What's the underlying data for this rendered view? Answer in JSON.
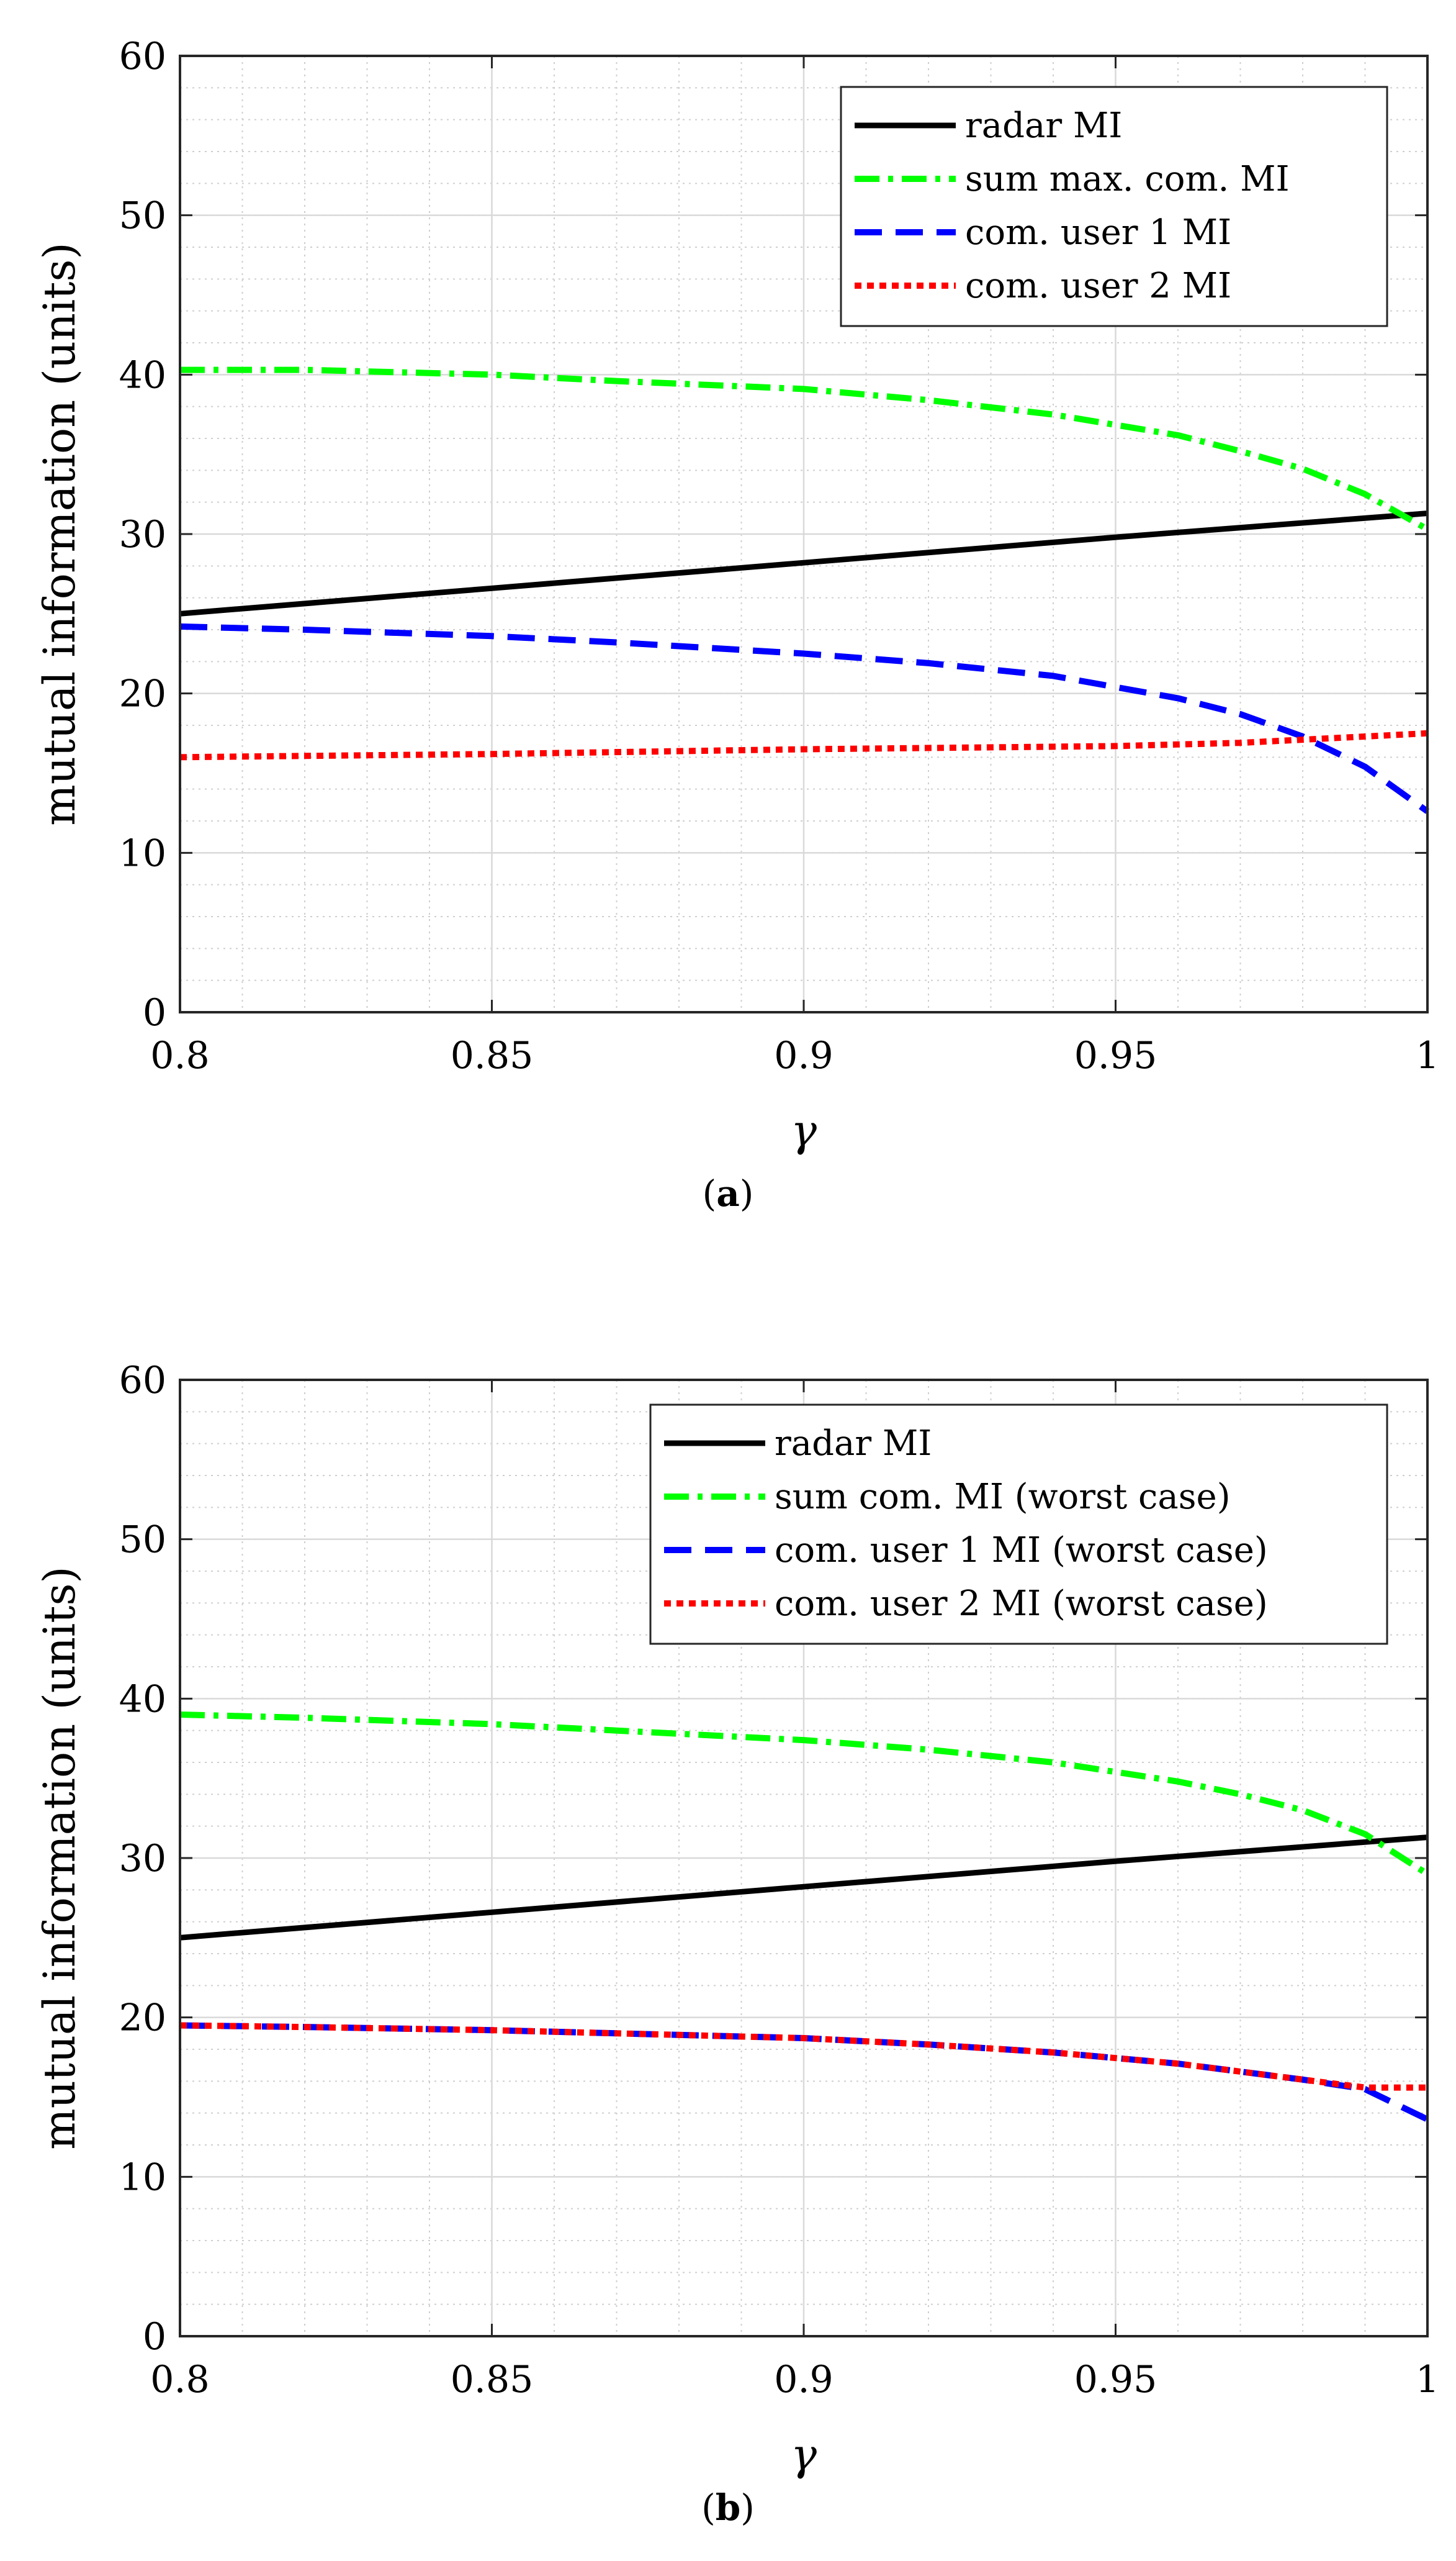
{
  "chart_data": [
    {
      "type": "line",
      "caption_letter": "a",
      "caption_open": "(",
      "caption_close": ")",
      "xlabel": "γ",
      "ylabel": "mutual information (units)",
      "xlim": [
        0.8,
        1.0
      ],
      "ylim": [
        0,
        60
      ],
      "xticks": [
        0.8,
        0.85,
        0.9,
        0.95,
        1.0
      ],
      "xtick_labels": [
        "0.8",
        "0.85",
        "0.9",
        "0.95",
        "1"
      ],
      "yticks": [
        0,
        10,
        20,
        30,
        40,
        50,
        60
      ],
      "ytick_labels": [
        "0",
        "10",
        "20",
        "30",
        "40",
        "50",
        "60"
      ],
      "grid": true,
      "minor_grid": true,
      "legend_position": "top-right",
      "series": [
        {
          "name": "radar MI",
          "color": "#000000",
          "style": "solid",
          "x": [
            0.8,
            0.85,
            0.9,
            0.95,
            1.0
          ],
          "y": [
            25.0,
            26.6,
            28.2,
            29.8,
            31.3
          ]
        },
        {
          "name": "sum max. com. MI",
          "color": "#00ff00",
          "style": "dashdot",
          "x": [
            0.8,
            0.82,
            0.85,
            0.87,
            0.9,
            0.92,
            0.94,
            0.96,
            0.97,
            0.98,
            0.99,
            1.0
          ],
          "y": [
            40.3,
            40.3,
            40.0,
            39.6,
            39.1,
            38.4,
            37.5,
            36.2,
            35.2,
            34.1,
            32.5,
            30.3
          ]
        },
        {
          "name": "com. user 1 MI",
          "color": "#0000ff",
          "style": "dashed",
          "x": [
            0.8,
            0.82,
            0.85,
            0.87,
            0.9,
            0.92,
            0.94,
            0.96,
            0.97,
            0.98,
            0.99,
            1.0
          ],
          "y": [
            24.2,
            24.0,
            23.6,
            23.2,
            22.5,
            21.9,
            21.1,
            19.7,
            18.7,
            17.3,
            15.4,
            12.6
          ]
        },
        {
          "name": "com. user 2 MI",
          "color": "#ff0000",
          "style": "dotted",
          "x": [
            0.8,
            0.85,
            0.9,
            0.95,
            0.96,
            0.97,
            0.98,
            0.99,
            1.0
          ],
          "y": [
            16.0,
            16.2,
            16.5,
            16.7,
            16.8,
            16.9,
            17.1,
            17.3,
            17.5
          ]
        }
      ]
    },
    {
      "type": "line",
      "caption_letter": "b",
      "caption_open": "(",
      "caption_close": ")",
      "xlabel": "γ",
      "ylabel": "mutual information (units)",
      "xlim": [
        0.8,
        1.0
      ],
      "ylim": [
        0,
        60
      ],
      "xticks": [
        0.8,
        0.85,
        0.9,
        0.95,
        1.0
      ],
      "xtick_labels": [
        "0.8",
        "0.85",
        "0.9",
        "0.95",
        "1"
      ],
      "yticks": [
        0,
        10,
        20,
        30,
        40,
        50,
        60
      ],
      "ytick_labels": [
        "0",
        "10",
        "20",
        "30",
        "40",
        "50",
        "60"
      ],
      "grid": true,
      "minor_grid": true,
      "legend_position": "top-right",
      "series": [
        {
          "name": "radar MI",
          "color": "#000000",
          "style": "solid",
          "x": [
            0.8,
            0.85,
            0.9,
            0.95,
            1.0
          ],
          "y": [
            25.0,
            26.6,
            28.2,
            29.8,
            31.3
          ]
        },
        {
          "name": "sum com. MI (worst case)",
          "color": "#00ff00",
          "style": "dashdot",
          "x": [
            0.8,
            0.82,
            0.85,
            0.87,
            0.9,
            0.92,
            0.94,
            0.96,
            0.97,
            0.98,
            0.99,
            1.0
          ],
          "y": [
            39.0,
            38.8,
            38.4,
            38.0,
            37.4,
            36.8,
            36.0,
            34.8,
            34.0,
            33.0,
            31.5,
            29.0
          ]
        },
        {
          "name": "com. user 1 MI (worst case)",
          "color": "#0000ff",
          "style": "dashed",
          "x": [
            0.8,
            0.82,
            0.85,
            0.87,
            0.9,
            0.92,
            0.94,
            0.96,
            0.97,
            0.98,
            0.99,
            1.0
          ],
          "y": [
            19.5,
            19.4,
            19.2,
            19.0,
            18.7,
            18.3,
            17.8,
            17.1,
            16.6,
            16.1,
            15.5,
            13.6
          ]
        },
        {
          "name": "com. user 2 MI (worst case)",
          "color": "#ff0000",
          "style": "dotted",
          "x": [
            0.8,
            0.82,
            0.85,
            0.87,
            0.9,
            0.92,
            0.94,
            0.96,
            0.97,
            0.98,
            0.99,
            1.0
          ],
          "y": [
            19.5,
            19.4,
            19.2,
            19.0,
            18.7,
            18.3,
            17.8,
            17.1,
            16.6,
            16.1,
            15.6,
            15.6
          ]
        }
      ]
    }
  ]
}
